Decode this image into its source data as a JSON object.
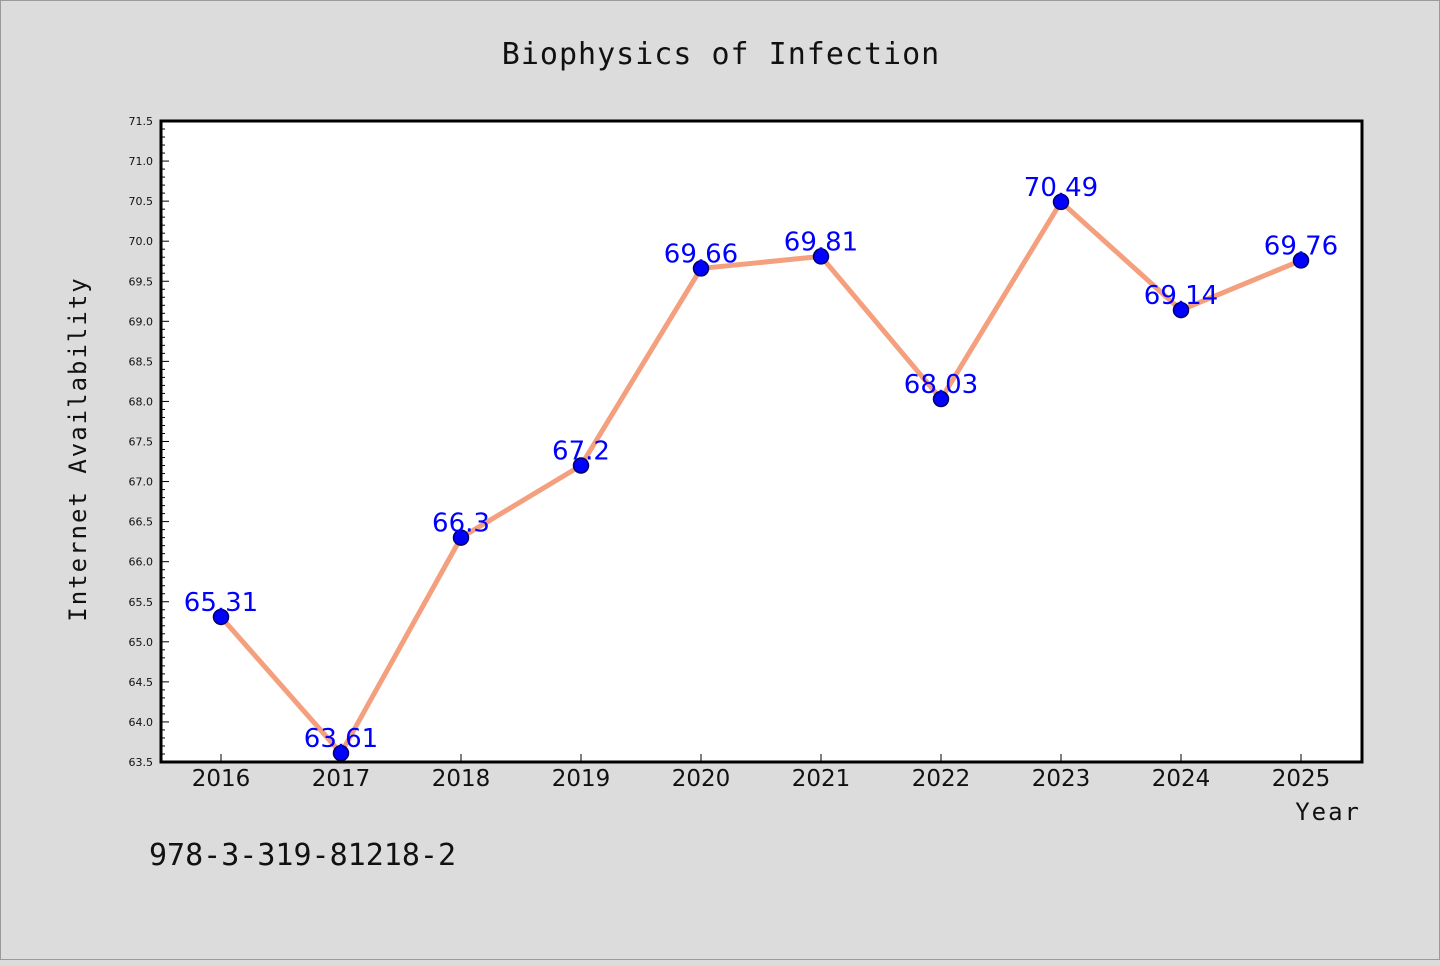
{
  "chart_data": {
    "type": "line",
    "title": "Biophysics of Infection",
    "xlabel": "Year",
    "ylabel": "Internet Availability",
    "categories": [
      "2016",
      "2017",
      "2018",
      "2019",
      "2020",
      "2021",
      "2022",
      "2023",
      "2024",
      "2025"
    ],
    "series": [
      {
        "values": [
          65.31,
          63.61,
          66.3,
          67.2,
          69.66,
          69.81,
          68.03,
          70.49,
          69.14,
          69.76
        ],
        "labels": [
          "65.31",
          "63.61",
          "66.3",
          "67.2",
          "69.66",
          "69.81",
          "68.03",
          "70.49",
          "69.14",
          "69.76"
        ]
      }
    ],
    "ylim": [
      63.5,
      71.5
    ],
    "yticks": [
      "63.5",
      "64.0",
      "64.5",
      "65.0",
      "65.5",
      "66.0",
      "66.5",
      "67.0",
      "67.5",
      "68.0",
      "68.5",
      "69.0",
      "69.5",
      "70.0",
      "70.5",
      "71.0",
      "71.5"
    ],
    "grid": false,
    "legend": "none",
    "annotation": "978-3-319-81218-2",
    "colors": {
      "line": "#f4a07e",
      "marker": "#0000ff",
      "marker_edge": "#000066",
      "data_label": "#0000ff",
      "plot_background": "#ffffff",
      "figure_background": "#dcdcdc"
    }
  }
}
